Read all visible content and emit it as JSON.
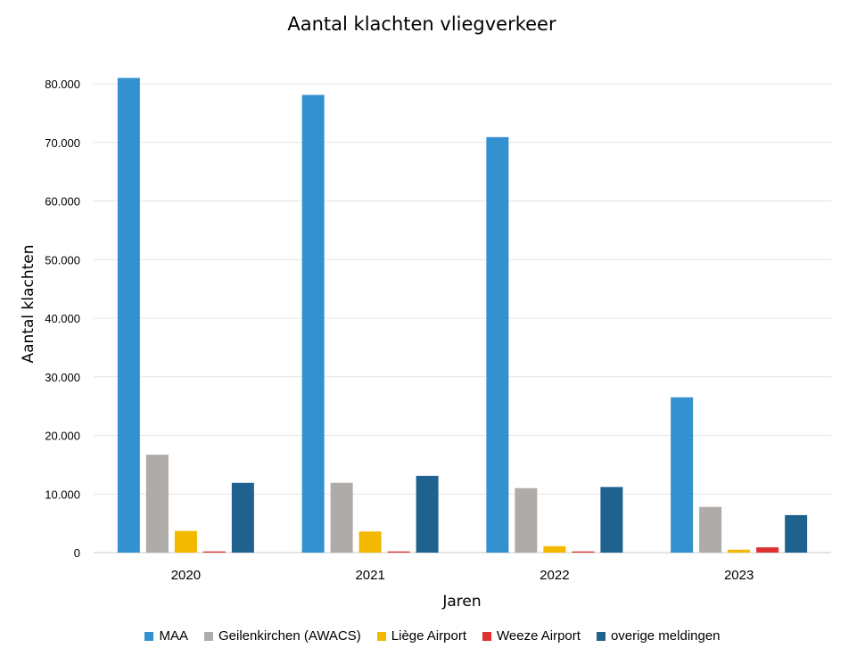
{
  "chart_data": {
    "type": "bar",
    "title": "Aantal klachten vliegverkeer",
    "xlabel": "Jaren",
    "ylabel": "Aantal klachten",
    "categories": [
      "2020",
      "2021",
      "2022",
      "2023"
    ],
    "ylim": [
      0,
      80000
    ],
    "yticks": [
      "0",
      "10.000",
      "20.000",
      "30.000",
      "40.000",
      "50.000",
      "60.000",
      "70.000",
      "80.000"
    ],
    "grid": true,
    "legend_position": "bottom",
    "series": [
      {
        "name": "MAA",
        "color": "#3391d0",
        "values": [
          81000,
          78100,
          70900,
          26500
        ]
      },
      {
        "name": "Geilenkirchen (AWACS)",
        "color": "#aeaba9",
        "values": [
          16700,
          11900,
          11000,
          7800
        ]
      },
      {
        "name": "Liège Airport",
        "color": "#f2b900",
        "values": [
          3700,
          3600,
          1100,
          500
        ]
      },
      {
        "name": "Weeze Airport",
        "color": "#e0302f",
        "values": [
          200,
          200,
          200,
          900
        ]
      },
      {
        "name": "overige meldingen",
        "color": "#1f6290",
        "values": [
          11900,
          13100,
          11200,
          6400
        ]
      }
    ]
  }
}
